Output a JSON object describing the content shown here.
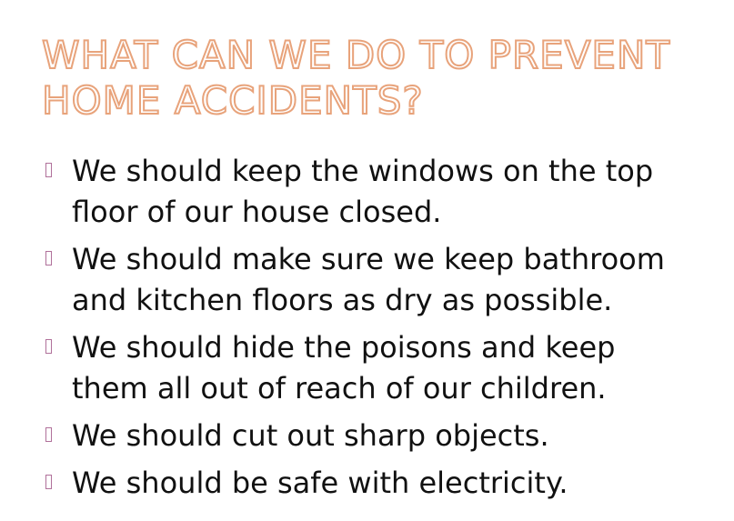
{
  "slide": {
    "title_lines": [
      "WHAT CAN WE DO TO PREVENT",
      "HOME ACCIDENTS?"
    ],
    "bullets": [
      {
        "lines": [
          "We should keep  the windows on the top",
          "floor of our house closed."
        ]
      },
      {
        "lines": [
          "We should make sure we keep bathroom",
          "and kitchen floors as dry as possible."
        ]
      },
      {
        "lines": [
          "We should hide the poisons and keep",
          "them all out of reach of our children."
        ]
      },
      {
        "lines": [
          "We should cut out sharp objects."
        ]
      },
      {
        "lines": [
          "We should be safe with electricity."
        ]
      }
    ],
    "colors": {
      "title_outline": "#e8a37b",
      "body_text": "#111111",
      "bullet_marker": "#b0709a"
    },
    "icons": {
      "bullet": "bullet-box-icon"
    }
  }
}
